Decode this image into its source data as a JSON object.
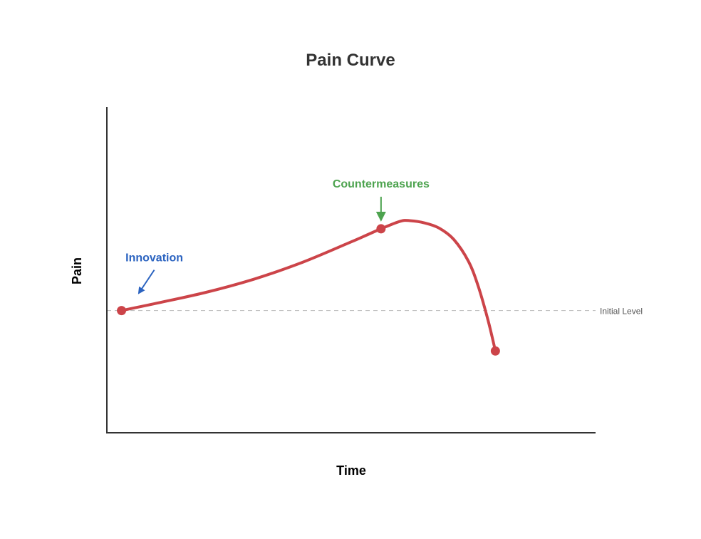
{
  "chart_data": {
    "type": "line",
    "title": "Pain Curve",
    "xlabel": "Time",
    "ylabel": "Pain",
    "xlim": [
      0,
      10
    ],
    "ylim": [
      0,
      10
    ],
    "grid": false,
    "series": [
      {
        "color": "#cc4449",
        "points": [
          {
            "x": 0.3,
            "y": 3.75
          },
          {
            "x": 5.61,
            "y": 6.26
          },
          {
            "x": 7.95,
            "y": 2.51
          }
        ]
      }
    ],
    "curve": [
      [
        0.3,
        3.75
      ],
      [
        1.0,
        3.97
      ],
      [
        2.0,
        4.3
      ],
      [
        3.0,
        4.71
      ],
      [
        4.0,
        5.23
      ],
      [
        5.0,
        5.86
      ],
      [
        5.61,
        6.26
      ],
      [
        6.0,
        6.49
      ],
      [
        6.2,
        6.51
      ],
      [
        6.5,
        6.44
      ],
      [
        6.8,
        6.28
      ],
      [
        7.1,
        5.93
      ],
      [
        7.4,
        5.26
      ],
      [
        7.6,
        4.49
      ],
      [
        7.8,
        3.45
      ],
      [
        7.95,
        2.51
      ]
    ],
    "reference_line": {
      "y": 3.75,
      "label": "Initial Level",
      "color": "#bbbbbb"
    },
    "annotations": [
      {
        "text": "Innovation",
        "x": 0.3,
        "y": 3.75,
        "color": "#2b63c0",
        "position": "above-right"
      },
      {
        "text": "Countermeasures",
        "x": 5.61,
        "y": 6.26,
        "color": "#4da34f",
        "position": "above"
      }
    ]
  }
}
